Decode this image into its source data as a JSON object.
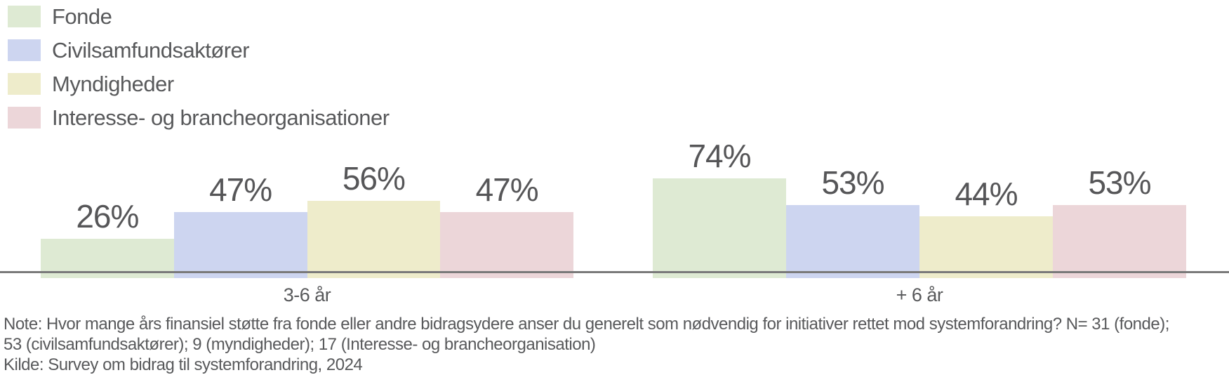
{
  "chart_data": {
    "type": "bar",
    "categories": [
      "3-6 år",
      "+ 6 år"
    ],
    "series": [
      {
        "name": "Fonde",
        "color": "#deead3",
        "values": [
          26,
          74
        ]
      },
      {
        "name": "Civilsamfundsaktører",
        "color": "#cdd5f0",
        "values": [
          47,
          53
        ]
      },
      {
        "name": "Myndigheder",
        "color": "#eeeccb",
        "values": [
          56,
          44
        ]
      },
      {
        "name": "Interesse- og brancheorganisationer",
        "color": "#ecd6d9",
        "values": [
          47,
          53
        ]
      }
    ],
    "value_suffix": "%",
    "ylim": [
      0,
      100
    ],
    "grid": false,
    "legend_position": "top-left",
    "axis_color": "#7a7a7a",
    "text_color": "#58595b"
  },
  "footnote": {
    "lines": [
      "Note: Hvor mange års finansiel støtte fra fonde eller andre bidragsydere anser du generelt som nødvendig for initiativer rettet mod systemforandring? N= 31 (fonde);",
      "53 (civilsamfundsaktører); 9 (myndigheder); 17 (Interesse- og brancheorganisation)",
      "Kilde: Survey om bidrag til systemforandring, 2024"
    ]
  }
}
